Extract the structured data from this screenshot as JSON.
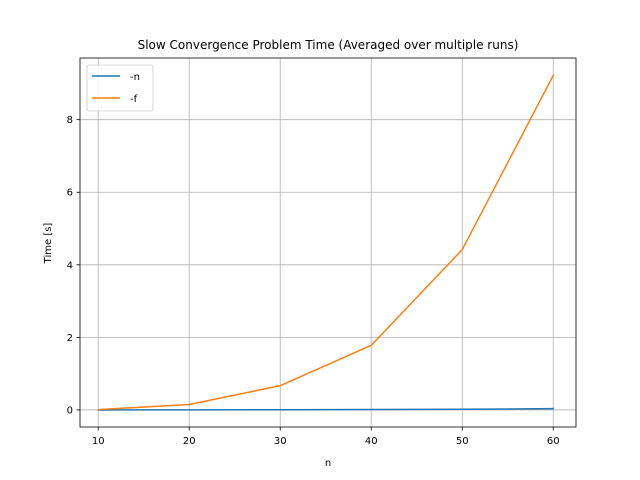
{
  "chart_data": {
    "type": "line",
    "title": "Slow Convergence Problem Time (Averaged over multiple runs)",
    "xlabel": "n",
    "ylabel": "Time [s]",
    "x": [
      10,
      20,
      30,
      40,
      50,
      60
    ],
    "xlim": [
      8,
      62.5
    ],
    "ylim": [
      -0.47,
      9.7
    ],
    "xticks": [
      10,
      20,
      30,
      40,
      50,
      60
    ],
    "xtick_labels": [
      "10",
      "20",
      "30",
      "40",
      "50",
      "60"
    ],
    "yticks": [
      0,
      2,
      4,
      6,
      8
    ],
    "ytick_labels": [
      "0",
      "2",
      "4",
      "6",
      "8"
    ],
    "grid": true,
    "legend_position": "top-left",
    "series": [
      {
        "name": "-n",
        "color": "#1f77b4",
        "values": [
          0.0,
          0.002,
          0.006,
          0.012,
          0.02,
          0.035
        ]
      },
      {
        "name": "-f",
        "color": "#ff7f0e",
        "values": [
          0.01,
          0.15,
          0.67,
          1.78,
          4.42,
          9.22
        ]
      }
    ]
  }
}
